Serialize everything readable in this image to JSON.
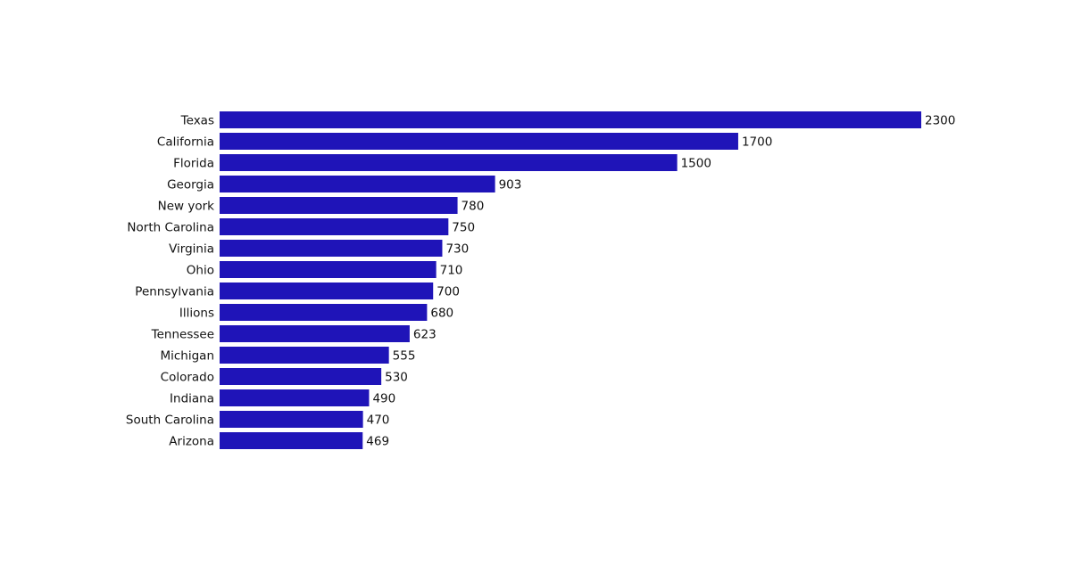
{
  "chart_data": {
    "type": "bar",
    "orientation": "horizontal",
    "categories": [
      "Texas",
      "California",
      "Florida",
      "Georgia",
      "New york",
      "North Carolina",
      "Virginia",
      "Ohio",
      "Pennsylvania",
      "Illions",
      "Tennessee",
      "Michigan",
      "Colorado",
      "Indiana",
      "South Carolina",
      "Arizona"
    ],
    "values": [
      2300,
      1700,
      1500,
      903,
      780,
      750,
      730,
      710,
      700,
      680,
      623,
      555,
      530,
      490,
      470,
      469
    ],
    "color": "#1f14b8"
  }
}
